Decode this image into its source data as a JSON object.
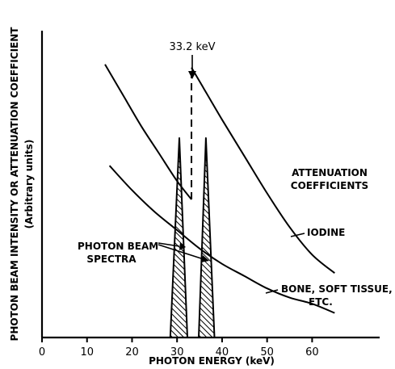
{
  "chart_data": {
    "type": "line",
    "xlabel": "PHOTON ENERGY (keV)",
    "ylabel": "PHOTON BEAM INTENSITY OR ATTENUATION COEFFICIENT",
    "ylabel_sub": "(Arbitrary units)",
    "xlim": [
      0,
      75
    ],
    "ylim": [
      0,
      1
    ],
    "x_ticks": [
      0,
      10,
      20,
      30,
      40,
      50,
      60
    ],
    "x_tick_labels": [
      "0",
      "10",
      "20",
      "30",
      "40",
      "50",
      "60"
    ],
    "y_ticks_shown": false,
    "grid": false,
    "series": [
      {
        "name": "IODINE",
        "kind": "attenuation",
        "segments": [
          {
            "x": [
              14,
              18,
              22,
              26,
              30,
              33.2
            ],
            "y": [
              0.89,
              0.79,
              0.69,
              0.6,
              0.51,
              0.45
            ]
          },
          {
            "x": [
              33.2,
              36,
              40,
              45,
              50,
              55,
              60,
              65
            ],
            "y": [
              0.88,
              0.81,
              0.71,
              0.59,
              0.47,
              0.36,
              0.27,
              0.21
            ]
          }
        ],
        "edge_x": 33.2,
        "edge_y_low": 0.45,
        "edge_y_high": 0.88
      },
      {
        "name": "BONE, SOFT TISSUE, ETC.",
        "kind": "attenuation",
        "x": [
          15,
          20,
          25,
          30,
          35,
          40,
          45,
          50,
          55,
          60,
          65
        ],
        "y": [
          0.56,
          0.48,
          0.41,
          0.35,
          0.29,
          0.24,
          0.2,
          0.16,
          0.13,
          0.11,
          0.08
        ]
      },
      {
        "name": "PHOTON BEAM SPECTRA",
        "kind": "spectrum",
        "peaks": [
          {
            "base_left": 28.5,
            "apex": 30.5,
            "base_right": 32.3,
            "height": 0.65
          },
          {
            "base_left": 34.8,
            "apex": 36.4,
            "base_right": 38.3,
            "height": 0.65
          }
        ]
      }
    ],
    "annotations": {
      "edge_label": "33.2 keV",
      "attenuation_title": [
        "ATTENUATION",
        "COEFFICIENTS"
      ],
      "iodine_label": "IODINE",
      "bone_label": [
        "BONE, SOFT TISSUE,",
        "ETC."
      ],
      "spectra_label": [
        "PHOTON BEAM",
        "SPECTRA"
      ]
    },
    "colors": {
      "ink": "#000000",
      "background": "#ffffff"
    }
  }
}
